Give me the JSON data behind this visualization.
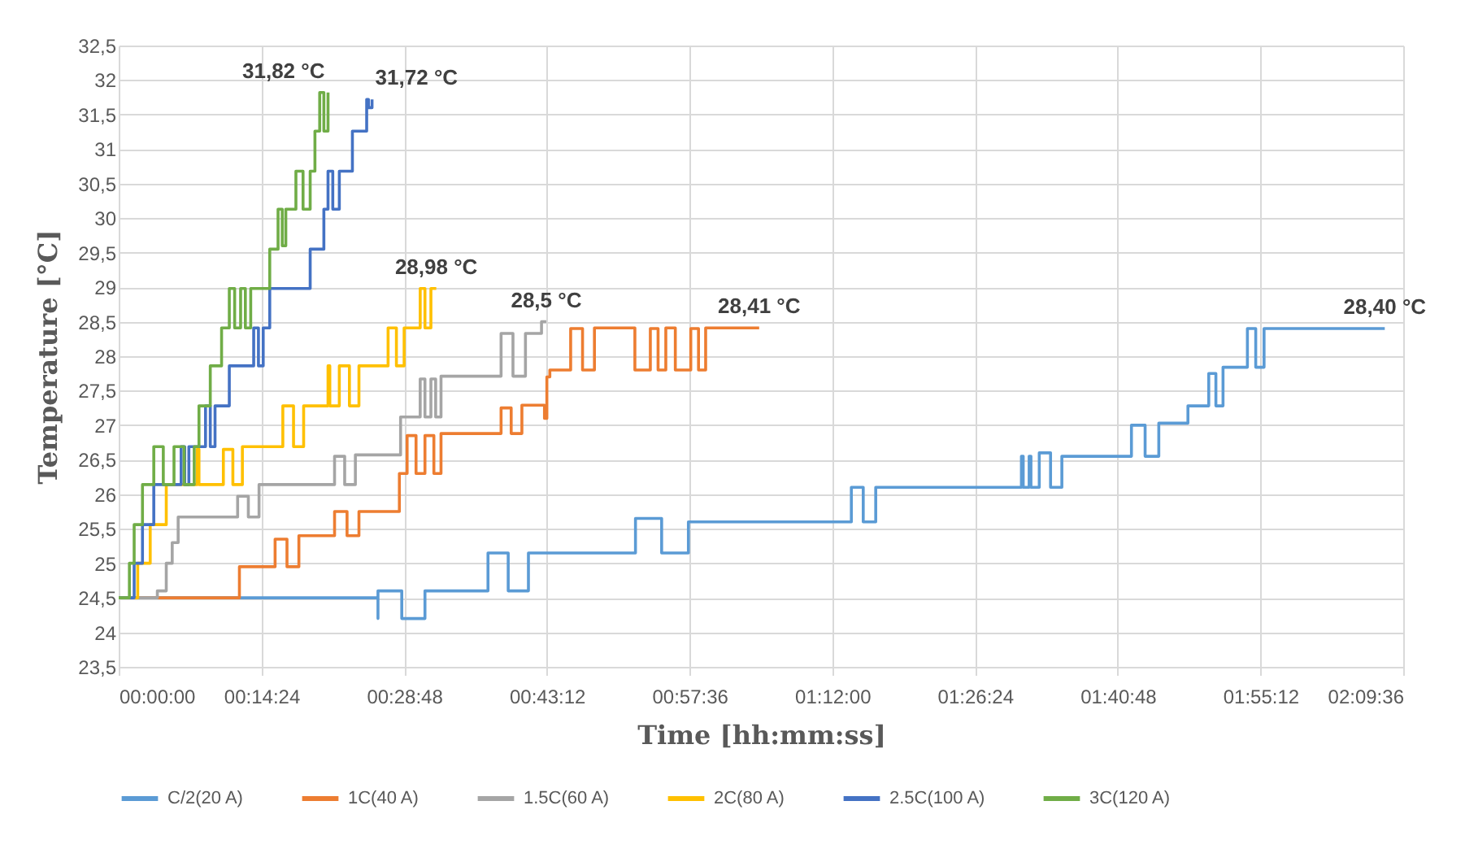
{
  "chart_data": {
    "type": "line",
    "xlabel": "Time [hh:mm:ss]",
    "ylabel": "Temperature [°C]",
    "xlim": [
      0,
      2.16
    ],
    "ylim": [
      23.5,
      32.5
    ],
    "xticks": [
      {
        "value": 0,
        "label": "00:00:00"
      },
      {
        "value": 0.24,
        "label": "00:14:24"
      },
      {
        "value": 0.48,
        "label": "00:28:48"
      },
      {
        "value": 0.72,
        "label": "00:43:12"
      },
      {
        "value": 0.96,
        "label": "00:57:36"
      },
      {
        "value": 1.2,
        "label": "01:12:00"
      },
      {
        "value": 1.44,
        "label": "01:26:24"
      },
      {
        "value": 1.68,
        "label": "01:40:48"
      },
      {
        "value": 1.92,
        "label": "01:55:12"
      },
      {
        "value": 2.16,
        "label": "02:09:36"
      }
    ],
    "yticks": [
      {
        "value": 23.5,
        "label": "23,5"
      },
      24,
      {
        "value": 24.5,
        "label": "24,5"
      },
      25,
      {
        "value": 25.5,
        "label": "25,5"
      },
      26,
      {
        "value": 26.5,
        "label": "26,5"
      },
      27,
      {
        "value": 27.5,
        "label": "27,5"
      },
      28,
      {
        "value": 28.5,
        "label": "28,5"
      },
      29,
      {
        "value": 29.5,
        "label": "29,5"
      },
      30,
      {
        "value": 30.5,
        "label": "30,5"
      },
      31,
      {
        "value": 31.5,
        "label": "31,5"
      },
      32,
      {
        "value": 32.5,
        "label": "32,5"
      }
    ],
    "grid": true,
    "legend": "bottom",
    "series": [
      {
        "name": "C/2(20 A)",
        "color": "#5b9bd5",
        "x": [
          0,
          0.436,
          0.436,
          0.436,
          0.476,
          0.476,
          0.515,
          0.515,
          0.621,
          0.621,
          0.655,
          0.655,
          0.689,
          0.689,
          0.869,
          0.869,
          0.913,
          0.913,
          0.958,
          0.958,
          1.232,
          1.232,
          1.252,
          1.252,
          1.273,
          1.273,
          1.518,
          1.518,
          1.521,
          1.521,
          1.531,
          1.531,
          1.534,
          1.534,
          1.548,
          1.548,
          1.567,
          1.567,
          1.586,
          1.586,
          1.703,
          1.703,
          1.726,
          1.726,
          1.749,
          1.749,
          1.798,
          1.798,
          1.833,
          1.833,
          1.845,
          1.845,
          1.857,
          1.857,
          1.898,
          1.898,
          1.912,
          1.912,
          1.926,
          1.926,
          2.129
        ],
        "values": [
          24.5,
          24.5,
          24.2,
          24.6,
          24.6,
          24.2,
          24.2,
          24.6,
          24.6,
          25.15,
          25.15,
          24.6,
          24.6,
          25.15,
          25.15,
          25.65,
          25.65,
          25.15,
          25.15,
          25.6,
          25.6,
          26.1,
          26.1,
          25.6,
          25.6,
          26.1,
          26.1,
          26.55,
          26.55,
          26.1,
          26.1,
          26.55,
          26.55,
          26.1,
          26.1,
          26.6,
          26.6,
          26.1,
          26.1,
          26.55,
          26.55,
          27.0,
          27.0,
          26.55,
          26.55,
          27.03,
          27.03,
          27.28,
          27.28,
          27.75,
          27.75,
          27.28,
          27.28,
          27.84,
          27.84,
          28.4,
          28.4,
          27.84,
          27.84,
          28.4,
          28.4
        ]
      },
      {
        "name": "1C(40 A)",
        "color": "#ed7d31",
        "x": [
          0,
          0.203,
          0.203,
          0.263,
          0.263,
          0.283,
          0.283,
          0.303,
          0.303,
          0.363,
          0.363,
          0.384,
          0.384,
          0.404,
          0.404,
          0.472,
          0.472,
          0.485,
          0.485,
          0.5,
          0.5,
          0.515,
          0.515,
          0.53,
          0.53,
          0.542,
          0.542,
          0.643,
          0.643,
          0.66,
          0.66,
          0.678,
          0.678,
          0.716,
          0.716,
          0.72,
          0.72,
          0.725,
          0.725,
          0.76,
          0.76,
          0.78,
          0.78,
          0.8,
          0.8,
          0.868,
          0.868,
          0.894,
          0.894,
          0.907,
          0.907,
          0.92,
          0.92,
          0.936,
          0.936,
          0.962,
          0.962,
          0.975,
          0.975,
          0.987,
          0.987,
          1.077
        ],
        "values": [
          24.5,
          24.5,
          24.95,
          24.95,
          25.35,
          25.35,
          24.95,
          24.95,
          25.4,
          25.4,
          25.75,
          25.75,
          25.4,
          25.4,
          25.75,
          25.75,
          26.3,
          26.3,
          26.85,
          26.85,
          26.3,
          26.3,
          26.85,
          26.85,
          26.3,
          26.3,
          26.88,
          26.88,
          27.25,
          27.25,
          26.88,
          26.88,
          27.29,
          27.29,
          27.1,
          27.1,
          27.7,
          27.7,
          27.8,
          27.8,
          28.4,
          28.4,
          27.8,
          27.8,
          28.41,
          28.41,
          27.8,
          27.8,
          28.4,
          28.4,
          27.8,
          27.8,
          28.41,
          28.41,
          27.8,
          27.8,
          28.4,
          28.4,
          27.8,
          27.8,
          28.41,
          28.41
        ]
      },
      {
        "name": "1.5C(60 A)",
        "color": "#a5a5a5",
        "x": [
          0,
          0.065,
          0.065,
          0.08,
          0.08,
          0.09,
          0.09,
          0.1,
          0.1,
          0.2,
          0.2,
          0.218,
          0.218,
          0.236,
          0.236,
          0.363,
          0.363,
          0.38,
          0.38,
          0.398,
          0.398,
          0.474,
          0.474,
          0.507,
          0.507,
          0.515,
          0.515,
          0.525,
          0.525,
          0.533,
          0.533,
          0.542,
          0.542,
          0.643,
          0.643,
          0.663,
          0.663,
          0.684,
          0.684,
          0.711,
          0.711,
          0.719
        ],
        "values": [
          24.5,
          24.5,
          24.6,
          24.6,
          25.0,
          25.0,
          25.3,
          25.3,
          25.67,
          25.67,
          25.97,
          25.97,
          25.67,
          25.67,
          26.14,
          26.14,
          26.55,
          26.55,
          26.14,
          26.14,
          26.57,
          26.57,
          27.12,
          27.12,
          27.67,
          27.67,
          27.12,
          27.12,
          27.67,
          27.67,
          27.12,
          27.12,
          27.71,
          27.71,
          28.33,
          28.33,
          27.71,
          27.71,
          28.33,
          28.33,
          28.5,
          28.5
        ]
      },
      {
        "name": "2C(80 A)",
        "color": "#ffc000",
        "x": [
          0,
          0.032,
          0.032,
          0.053,
          0.053,
          0.08,
          0.08,
          0.132,
          0.132,
          0.135,
          0.135,
          0.176,
          0.176,
          0.192,
          0.192,
          0.208,
          0.208,
          0.276,
          0.276,
          0.294,
          0.294,
          0.311,
          0.311,
          0.352,
          0.352,
          0.355,
          0.355,
          0.371,
          0.371,
          0.388,
          0.388,
          0.404,
          0.404,
          0.453,
          0.453,
          0.467,
          0.467,
          0.48,
          0.48,
          0.507,
          0.507,
          0.515,
          0.515,
          0.525,
          0.525,
          0.534
        ],
        "values": [
          24.5,
          24.5,
          25.0,
          25.0,
          25.56,
          25.56,
          26.14,
          26.14,
          26.65,
          26.65,
          26.14,
          26.14,
          26.65,
          26.65,
          26.14,
          26.14,
          26.69,
          26.69,
          27.28,
          27.28,
          26.69,
          26.69,
          27.28,
          27.28,
          27.86,
          27.86,
          27.28,
          27.28,
          27.86,
          27.86,
          27.28,
          27.28,
          27.86,
          27.86,
          28.41,
          28.41,
          27.86,
          27.86,
          28.41,
          28.41,
          28.98,
          28.98,
          28.41,
          28.41,
          28.98,
          28.98
        ]
      },
      {
        "name": "2.5C(100 A)",
        "color": "#4472c4",
        "x": [
          0,
          0.026,
          0.026,
          0.04,
          0.04,
          0.059,
          0.059,
          0.105,
          0.105,
          0.111,
          0.111,
          0.118,
          0.118,
          0.146,
          0.146,
          0.154,
          0.154,
          0.162,
          0.162,
          0.186,
          0.186,
          0.227,
          0.227,
          0.235,
          0.235,
          0.243,
          0.243,
          0.254,
          0.254,
          0.322,
          0.322,
          0.345,
          0.345,
          0.352,
          0.352,
          0.36,
          0.36,
          0.371,
          0.371,
          0.393,
          0.393,
          0.417,
          0.417,
          0.42,
          0.42,
          0.426,
          0.426
        ],
        "values": [
          24.5,
          24.5,
          25.0,
          25.0,
          25.56,
          25.56,
          26.14,
          26.14,
          26.69,
          26.69,
          26.14,
          26.14,
          26.69,
          26.69,
          27.28,
          27.28,
          26.69,
          26.69,
          27.28,
          27.28,
          27.86,
          27.86,
          28.41,
          28.41,
          27.86,
          27.86,
          28.41,
          28.41,
          28.98,
          28.98,
          29.55,
          29.55,
          30.13,
          30.13,
          30.68,
          30.68,
          30.13,
          30.13,
          30.68,
          30.68,
          31.26,
          31.26,
          31.72,
          31.72,
          31.6,
          31.6,
          31.72
        ]
      },
      {
        "name": "3C(120 A)",
        "color": "#70ad47",
        "x": [
          0,
          0.018,
          0.018,
          0.026,
          0.026,
          0.04,
          0.04,
          0.059,
          0.059,
          0.075,
          0.075,
          0.093,
          0.093,
          0.11,
          0.11,
          0.127,
          0.127,
          0.135,
          0.135,
          0.154,
          0.154,
          0.173,
          0.173,
          0.186,
          0.186,
          0.195,
          0.195,
          0.205,
          0.205,
          0.213,
          0.213,
          0.222,
          0.222,
          0.254,
          0.254,
          0.268,
          0.268,
          0.275,
          0.275,
          0.281,
          0.281,
          0.298,
          0.298,
          0.31,
          0.31,
          0.322,
          0.322,
          0.33,
          0.33,
          0.338,
          0.338,
          0.345,
          0.345,
          0.352,
          0.352
        ],
        "values": [
          24.5,
          24.5,
          25.0,
          25.0,
          25.56,
          25.56,
          26.14,
          26.14,
          26.69,
          26.69,
          26.14,
          26.14,
          26.69,
          26.69,
          26.14,
          26.14,
          26.69,
          26.69,
          27.28,
          27.28,
          27.86,
          27.86,
          28.41,
          28.41,
          28.98,
          28.98,
          28.41,
          28.41,
          28.98,
          28.98,
          28.41,
          28.41,
          28.98,
          28.98,
          29.55,
          29.55,
          30.13,
          30.13,
          29.6,
          29.6,
          30.13,
          30.13,
          30.68,
          30.68,
          30.13,
          30.13,
          30.68,
          30.68,
          31.26,
          31.26,
          31.82,
          31.82,
          31.26,
          31.26,
          31.82
        ]
      }
    ],
    "annotations": [
      {
        "text": "31,82 °C",
        "x": 0.352,
        "y": 31.82
      },
      {
        "text": "31,72 °C",
        "x": 0.426,
        "y": 31.72
      },
      {
        "text": "28,98 °C",
        "x": 0.534,
        "y": 28.98
      },
      {
        "text": "28,5 °C",
        "x": 0.719,
        "y": 28.5
      },
      {
        "text": "28,41 °C",
        "x": 1.077,
        "y": 28.41
      },
      {
        "text": "28,40 °C",
        "x": 2.129,
        "y": 28.4
      }
    ]
  }
}
